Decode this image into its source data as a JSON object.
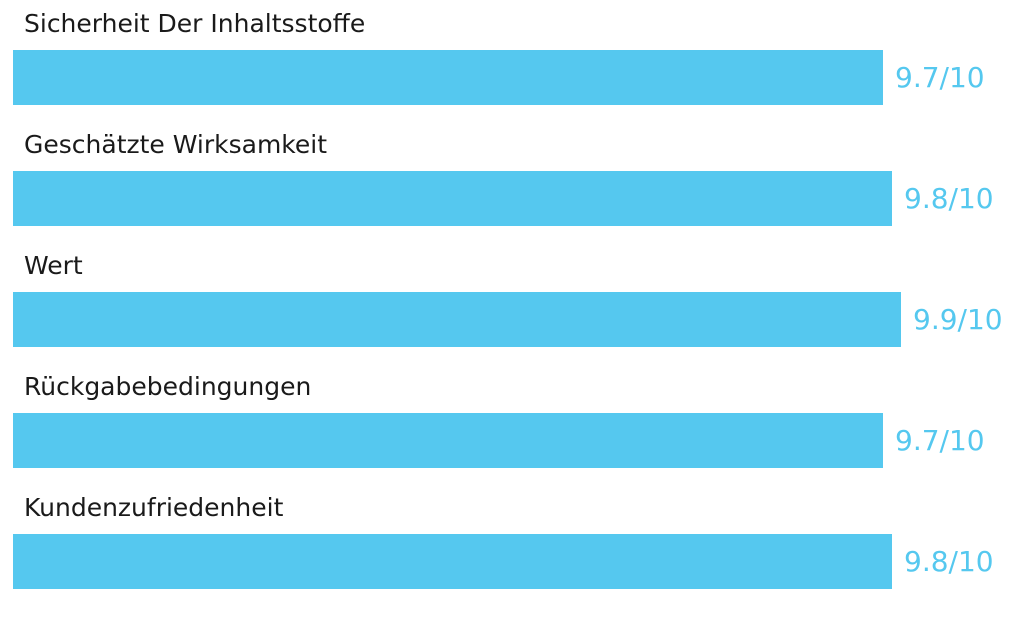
{
  "accent_color": "#55c8ef",
  "chart_data": {
    "type": "bar",
    "orientation": "horizontal",
    "max": 10,
    "categories": [
      "Sicherheit Der Inhaltsstoffe",
      "Geschätzte Wirksamkeit",
      "Wert",
      "Rückgabebedingungen",
      "Kundenzufriedenheit"
    ],
    "values": [
      9.7,
      9.8,
      9.9,
      9.7,
      9.8
    ],
    "value_labels": [
      "9.7/10",
      "9.8/10",
      "9.9/10",
      "9.7/10",
      "9.8/10"
    ]
  }
}
